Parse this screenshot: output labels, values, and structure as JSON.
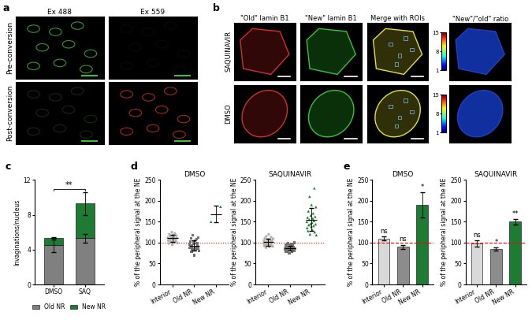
{
  "image_panels": {
    "a": {
      "panel": "a",
      "columns": [
        "Ex 488",
        "Ex 559"
      ],
      "rows": [
        "Pre-conversion",
        "Post-conversion"
      ]
    },
    "b": {
      "panel": "b",
      "columns": [
        "\"Old\" lamin B1",
        "\"New\" lamin B1",
        "Merge with ROIs",
        "\"New\"/\"old\" ratio"
      ],
      "rows": [
        "SAQUINAVIR",
        "DMSO"
      ],
      "colorbar_range": [
        1,
        15
      ],
      "colorbar_ticks": [
        1,
        8,
        15
      ]
    }
  },
  "chart_data": [
    {
      "panel": "c",
      "type": "bar",
      "stacked": true,
      "categories": [
        "DMSO",
        "SAQ"
      ],
      "ylabel": "Invaginations/nucleus",
      "ylim": [
        0,
        12
      ],
      "yticks": [
        0,
        4,
        8,
        12
      ],
      "series": [
        {
          "name": "Old NR",
          "color": "#808080",
          "values": [
            4.5,
            5.3
          ],
          "errors": [
            0.8,
            0.5
          ]
        },
        {
          "name": "New NR",
          "color": "#1e7b34",
          "values": [
            0.8,
            4.0
          ],
          "errors": [
            0.1,
            1.3
          ]
        }
      ],
      "legend": "bottom",
      "significance": "**"
    },
    {
      "panel": "d",
      "type": "scatter",
      "title": "DMSO",
      "categories": [
        "Interior",
        "Old NR",
        "New NR"
      ],
      "ylabel": "% of the peripheral signal at the NE",
      "ylim": [
        0,
        250
      ],
      "yticks": [
        0,
        50,
        100,
        150,
        200,
        250
      ],
      "colors": [
        "#b0b0b0",
        "#707070",
        "#1e7b34"
      ],
      "reference_line": 100,
      "values": [
        [
          112,
          105,
          98,
          120,
          108,
          115,
          102,
          110,
          125,
          95,
          118,
          107,
          113,
          100,
          122,
          109,
          104,
          117,
          111,
          99
        ],
        [
          95,
          88,
          102,
          110,
          78,
          92,
          85,
          118,
          100,
          97,
          70,
          105,
          90,
          83,
          108,
          99,
          93,
          87,
          112,
          80
        ],
        [
          150,
          186
        ]
      ],
      "means": [
        110.5,
        93,
        168
      ],
      "errors": [
        8,
        12,
        20
      ]
    },
    {
      "type": "scatter",
      "title": "SAQUINAVIR",
      "categories": [
        "Interior",
        "Old NR",
        "New NR"
      ],
      "ylabel": "% of the peripheral signal at the NE",
      "ylim": [
        0,
        250
      ],
      "yticks": [
        0,
        50,
        100,
        150,
        200,
        250
      ],
      "colors": [
        "#b0b0b0",
        "#707070",
        "#1e7b34"
      ],
      "reference_line": 100,
      "values": [
        [
          98,
          105,
          92,
          110,
          101,
          95,
          88,
          115,
          100,
          97,
          103,
          108,
          94,
          120,
          99,
          90,
          106,
          102,
          96,
          113,
          93,
          104,
          100,
          91,
          109
        ],
        [
          85,
          92,
          78,
          95,
          88,
          80,
          90,
          98,
          84,
          86,
          75,
          94,
          89,
          82,
          91,
          87,
          96,
          79,
          93,
          83,
          88,
          90,
          81,
          100,
          86
        ],
        [
          150,
          135,
          160,
          128,
          175,
          142,
          155,
          210,
          120,
          145,
          165,
          138,
          190,
          148,
          130,
          158,
          170,
          140,
          152,
          230,
          125,
          162,
          144,
          185,
          118
        ]
      ],
      "means": [
        101,
        87,
        155
      ],
      "errors": [
        8,
        6,
        27
      ]
    },
    {
      "panel": "e",
      "type": "bar",
      "title": "DMSO",
      "categories": [
        "Interior",
        "Old NR",
        "New NR"
      ],
      "ylabel": "% of the peripheral signal at the NE",
      "ylim": [
        0,
        250
      ],
      "yticks": [
        0,
        50,
        100,
        150,
        200,
        250
      ],
      "colors": [
        "#d9d9d9",
        "#8c8c8c",
        "#1e7b34"
      ],
      "reference_line": 100,
      "values": [
        110,
        90,
        190
      ],
      "errors": [
        5,
        5,
        30
      ],
      "significance": [
        "ns",
        "ns",
        "*"
      ]
    },
    {
      "type": "bar",
      "title": "SAQUINAVIR",
      "categories": [
        "Interior",
        "Old NR",
        "New NR"
      ],
      "ylabel": "% of the peripheral signal at the NE",
      "ylim": [
        0,
        250
      ],
      "yticks": [
        0,
        50,
        100,
        150,
        200,
        250
      ],
      "colors": [
        "#d9d9d9",
        "#8c8c8c",
        "#1e7b34"
      ],
      "reference_line": 100,
      "values": [
        98,
        85,
        150
      ],
      "errors": [
        7,
        4,
        6
      ],
      "significance": [
        "ns",
        "*",
        "**"
      ]
    }
  ]
}
